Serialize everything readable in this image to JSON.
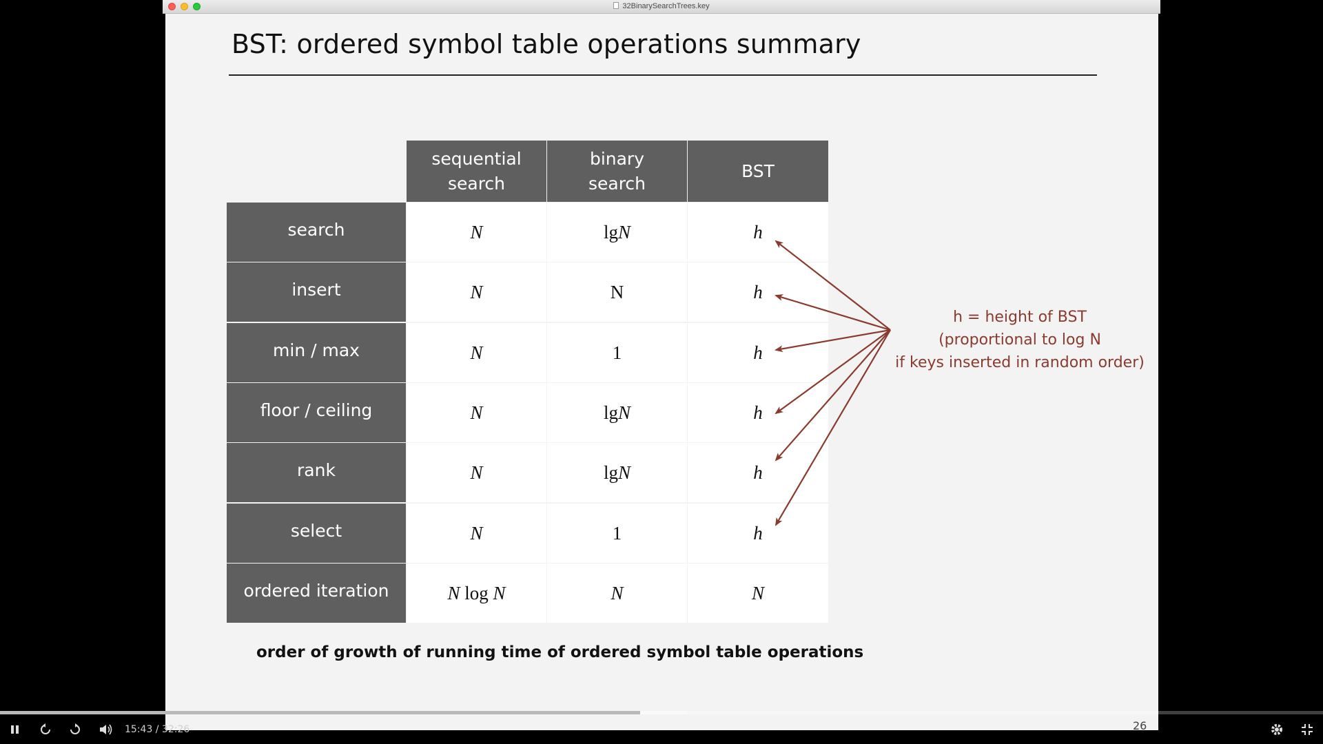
{
  "window": {
    "title": "32BinarySearchTrees.key"
  },
  "slide": {
    "title": "BST:  ordered symbol table operations summary",
    "caption": "order of growth of running time of ordered symbol table operations",
    "page_number": "26",
    "note": {
      "line1": "h = height of BST",
      "line2": "(proportional to log N",
      "line3": "if keys inserted in random order)",
      "color": "#8b3a2e"
    },
    "table": {
      "columns": [
        {
          "line1": "sequential",
          "line2": "search"
        },
        {
          "line1": "binary",
          "line2": "search"
        },
        {
          "line1": "BST",
          "line2": ""
        }
      ],
      "rows": [
        {
          "label": "search",
          "cells": [
            [
              "",
              "N"
            ],
            [
              "lg ",
              "N"
            ],
            [
              "",
              "h"
            ]
          ]
        },
        {
          "label": "insert",
          "cells": [
            [
              "",
              "N"
            ],
            [
              "N",
              ""
            ],
            [
              "",
              "h"
            ]
          ]
        },
        {
          "label": "min / max",
          "cells": [
            [
              "",
              "N"
            ],
            [
              "1",
              ""
            ],
            [
              "",
              "h"
            ]
          ]
        },
        {
          "label": "floor / ceiling",
          "cells": [
            [
              "",
              "N"
            ],
            [
              "lg ",
              "N"
            ],
            [
              "",
              "h"
            ]
          ]
        },
        {
          "label": "rank",
          "cells": [
            [
              "",
              "N"
            ],
            [
              "lg ",
              "N"
            ],
            [
              "",
              "h"
            ]
          ]
        },
        {
          "label": "select",
          "cells": [
            [
              "",
              "N"
            ],
            [
              "1",
              ""
            ],
            [
              "",
              "h"
            ]
          ]
        },
        {
          "label": "ordered iteration",
          "cells": [
            [
              "N log N",
              ""
            ],
            [
              "",
              "N"
            ],
            [
              "",
              "N"
            ]
          ]
        }
      ]
    }
  },
  "player": {
    "time": "15:43 / 32:26",
    "progress": 0.484,
    "buffered": 0.52,
    "icons": [
      "pause-icon",
      "rewind-icon",
      "forward-icon",
      "volume-icon",
      "gear-icon",
      "exit-fullscreen-icon"
    ]
  }
}
